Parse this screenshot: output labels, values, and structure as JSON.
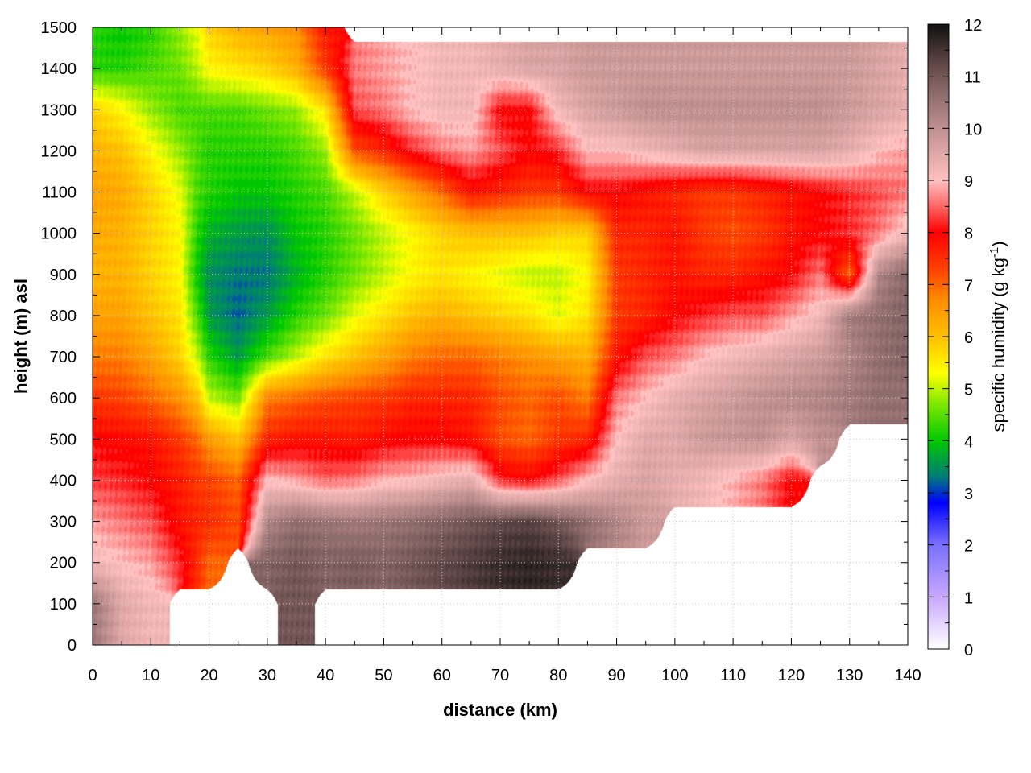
{
  "chart_data": {
    "type": "heatmap",
    "xlabel": "distance (km)",
    "ylabel": "height (m) asl",
    "xlim": [
      0,
      140
    ],
    "ylim": [
      0,
      1500
    ],
    "x_ticks": [
      "0",
      "10",
      "20",
      "30",
      "40",
      "50",
      "60",
      "70",
      "80",
      "90",
      "100",
      "110",
      "120",
      "130",
      "140"
    ],
    "y_ticks": [
      "0",
      "100",
      "200",
      "300",
      "400",
      "500",
      "600",
      "700",
      "800",
      "900",
      "1000",
      "1100",
      "1200",
      "1300",
      "1400",
      "1500"
    ],
    "colorbar": {
      "label_main": "specific humidity (g kg",
      "label_sup": "-1",
      "label_end": ")",
      "range": [
        0,
        12
      ],
      "ticks": [
        "0",
        "1",
        "2",
        "3",
        "4",
        "5",
        "6",
        "7",
        "8",
        "9",
        "10",
        "11",
        "12"
      ],
      "stops": [
        {
          "value": 0,
          "color": "#ffffff"
        },
        {
          "value": 1,
          "color": "#c8a8ff"
        },
        {
          "value": 2,
          "color": "#7a70ff"
        },
        {
          "value": 2.8,
          "color": "#0000ff"
        },
        {
          "value": 3.3,
          "color": "#007a7a"
        },
        {
          "value": 4,
          "color": "#00c800"
        },
        {
          "value": 4.7,
          "color": "#7ee800"
        },
        {
          "value": 5.3,
          "color": "#ffff00"
        },
        {
          "value": 6,
          "color": "#ffc000"
        },
        {
          "value": 6.7,
          "color": "#ff8c00"
        },
        {
          "value": 7.3,
          "color": "#ff4000"
        },
        {
          "value": 8,
          "color": "#ff0000"
        },
        {
          "value": 8.6,
          "color": "#ff7878"
        },
        {
          "value": 9,
          "color": "#ffc0c0"
        },
        {
          "value": 9.5,
          "color": "#e0a8a8"
        },
        {
          "value": 10,
          "color": "#c09090"
        },
        {
          "value": 10.7,
          "color": "#8c6a6a"
        },
        {
          "value": 11.3,
          "color": "#5a4242"
        },
        {
          "value": 12,
          "color": "#101010"
        }
      ]
    },
    "field_x": [
      0,
      5,
      10,
      15,
      18,
      20,
      25,
      30,
      35,
      40,
      45,
      50,
      55,
      60,
      65,
      70,
      75,
      80,
      85,
      90,
      95,
      100,
      105,
      110,
      115,
      120,
      125,
      130,
      135,
      140
    ],
    "field_y": [
      100,
      200,
      300,
      400,
      500,
      600,
      700,
      800,
      900,
      1000,
      1100,
      1200,
      1300,
      1400,
      1500
    ],
    "field_z": [
      [
        10.5,
        9.5,
        9.2,
        null,
        null,
        null,
        null,
        null,
        11.0,
        null,
        null,
        null,
        null,
        null,
        null,
        null,
        null,
        null,
        null,
        null,
        null,
        null,
        null,
        null,
        null,
        null,
        null,
        null,
        null,
        null
      ],
      [
        9.2,
        9.0,
        8.8,
        8.2,
        7.5,
        7.0,
        null,
        10.8,
        11.0,
        10.8,
        10.9,
        10.8,
        11.0,
        11.2,
        11.4,
        11.6,
        11.7,
        11.6,
        null,
        null,
        null,
        null,
        null,
        null,
        null,
        null,
        null,
        null,
        null,
        null
      ],
      [
        8.8,
        8.6,
        8.4,
        7.8,
        7.6,
        7.5,
        7.2,
        10.2,
        10.6,
        10.5,
        10.4,
        10.5,
        10.6,
        10.8,
        11.0,
        11.2,
        11.3,
        11.0,
        10.6,
        10.2,
        9.8,
        null,
        null,
        null,
        null,
        null,
        null,
        null,
        null,
        null
      ],
      [
        8.3,
        8.2,
        8.0,
        7.7,
        7.4,
        7.3,
        7.0,
        9.0,
        8.8,
        8.5,
        8.6,
        8.9,
        9.0,
        9.2,
        9.4,
        8.2,
        8.0,
        8.4,
        9.0,
        9.4,
        9.6,
        9.4,
        9.2,
        8.9,
        8.6,
        8.0,
        null,
        null,
        null,
        null
      ],
      [
        8.0,
        7.9,
        7.8,
        7.4,
        7.0,
        6.5,
        6.0,
        7.6,
        7.8,
        7.8,
        7.7,
        7.9,
        8.0,
        8.0,
        7.8,
        7.2,
        7.0,
        7.4,
        7.6,
        9.0,
        9.5,
        9.5,
        9.8,
        9.9,
        10.0,
        9.6,
        10.0,
        null,
        null,
        null
      ],
      [
        7.4,
        7.3,
        7.0,
        6.6,
        6.0,
        5.0,
        4.6,
        6.8,
        7.0,
        7.2,
        7.3,
        7.4,
        7.6,
        7.6,
        7.6,
        7.2,
        7.0,
        7.2,
        6.8,
        8.6,
        9.0,
        9.4,
        9.6,
        9.8,
        10.0,
        10.1,
        10.2,
        10.4,
        10.6,
        10.6
      ],
      [
        6.8,
        6.8,
        6.4,
        5.8,
        5.0,
        4.2,
        3.6,
        4.4,
        5.0,
        5.6,
        6.0,
        6.4,
        6.8,
        7.0,
        7.0,
        6.8,
        6.6,
        6.4,
        6.2,
        7.8,
        8.4,
        8.6,
        9.0,
        9.2,
        9.4,
        9.6,
        9.8,
        10.2,
        10.6,
        10.8
      ],
      [
        6.4,
        6.4,
        6.0,
        5.6,
        4.4,
        3.6,
        3.2,
        3.6,
        4.2,
        4.6,
        5.2,
        5.6,
        6.0,
        6.2,
        6.0,
        5.8,
        5.6,
        5.2,
        5.6,
        7.4,
        7.6,
        8.0,
        8.2,
        8.4,
        8.4,
        8.8,
        9.2,
        10.4,
        10.6,
        10.8
      ],
      [
        6.2,
        6.2,
        5.8,
        5.4,
        4.0,
        3.5,
        3.3,
        3.3,
        3.8,
        4.2,
        4.6,
        5.0,
        5.4,
        5.6,
        5.4,
        5.2,
        5.0,
        5.0,
        5.4,
        7.4,
        7.6,
        7.8,
        7.6,
        7.6,
        7.8,
        8.0,
        8.6,
        7.0,
        10.2,
        10.8
      ],
      [
        6.3,
        6.2,
        5.8,
        5.4,
        4.2,
        3.8,
        3.6,
        3.5,
        4.0,
        4.2,
        4.6,
        5.0,
        5.4,
        5.8,
        6.0,
        6.0,
        6.0,
        5.8,
        5.8,
        7.6,
        7.6,
        7.8,
        7.4,
        7.2,
        7.4,
        7.8,
        8.0,
        8.2,
        8.6,
        9.2
      ],
      [
        6.4,
        6.3,
        5.8,
        5.2,
        4.4,
        4.2,
        4.0,
        4.0,
        4.2,
        4.4,
        5.0,
        5.8,
        6.4,
        7.0,
        7.8,
        7.6,
        7.4,
        7.4,
        8.0,
        8.0,
        7.8,
        7.6,
        7.4,
        7.4,
        7.6,
        7.8,
        8.0,
        8.2,
        8.4,
        8.6
      ],
      [
        6.2,
        6.0,
        5.4,
        4.8,
        4.4,
        4.2,
        4.2,
        4.2,
        4.4,
        4.8,
        7.2,
        7.6,
        8.2,
        8.6,
        8.8,
        8.4,
        8.0,
        8.2,
        9.0,
        9.0,
        9.2,
        9.4,
        9.6,
        9.6,
        9.6,
        9.6,
        9.6,
        9.4,
        9.0,
        8.8
      ],
      [
        5.8,
        5.4,
        4.8,
        4.4,
        4.4,
        4.4,
        4.4,
        4.6,
        4.8,
        5.6,
        8.4,
        8.6,
        9.0,
        9.2,
        9.2,
        8.0,
        8.0,
        9.2,
        9.6,
        9.8,
        10.0,
        10.0,
        10.0,
        10.0,
        10.0,
        10.0,
        10.0,
        9.8,
        9.6,
        9.4
      ],
      [
        4.2,
        4.2,
        4.4,
        4.6,
        5.0,
        5.4,
        5.6,
        5.8,
        6.2,
        7.4,
        8.6,
        8.8,
        9.0,
        9.2,
        9.2,
        9.4,
        9.6,
        9.6,
        9.8,
        9.8,
        9.8,
        9.8,
        9.8,
        9.8,
        9.8,
        9.8,
        9.8,
        9.8,
        9.6,
        9.4
      ],
      [
        4.2,
        4.0,
        4.2,
        4.8,
        5.2,
        5.8,
        6.2,
        6.4,
        6.6,
        7.8,
        null,
        null,
        null,
        null,
        null,
        null,
        null,
        null,
        null,
        null,
        null,
        null,
        null,
        null,
        null,
        null,
        null,
        null,
        null,
        null
      ]
    ],
    "grid": true
  }
}
